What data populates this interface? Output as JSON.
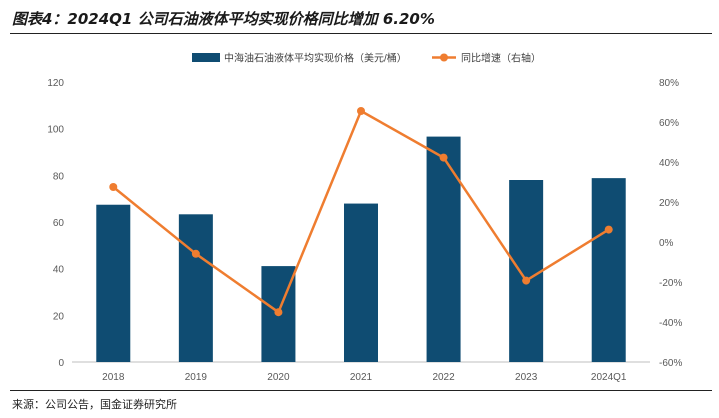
{
  "title": "图表4：2024Q1 公司石油液体平均实现价格同比增加 6.20%",
  "source": "来源：公司公告，国金证券研究所",
  "colors": {
    "bar": "#0f4c72",
    "line": "#ef7d30",
    "axis": "#bfbfbf",
    "tick": "#595959"
  },
  "chart_data": {
    "type": "bar+line",
    "categories": [
      "2018",
      "2019",
      "2020",
      "2021",
      "2022",
      "2023",
      "2024Q1"
    ],
    "series": [
      {
        "name": "中海油石油液体平均实现价格（美元/桶）",
        "type": "bar",
        "axis": "left",
        "values": [
          67.4,
          63.3,
          41.1,
          67.9,
          96.6,
          78.0,
          78.8
        ]
      },
      {
        "name": "同比增速（右轴）",
        "type": "line",
        "axis": "right",
        "values": [
          27.5,
          -5.9,
          -35.1,
          65.5,
          42.2,
          -19.3,
          6.2
        ]
      }
    ],
    "left_axis": {
      "min": 0,
      "max": 120,
      "ticks": [
        "0",
        "20",
        "40",
        "60",
        "80",
        "100",
        "120"
      ]
    },
    "right_axis": {
      "min": -60,
      "max": 80,
      "ticks": [
        "-60%",
        "-40%",
        "-20%",
        "0%",
        "20%",
        "40%",
        "60%",
        "80%"
      ]
    },
    "legend_position": "top"
  }
}
